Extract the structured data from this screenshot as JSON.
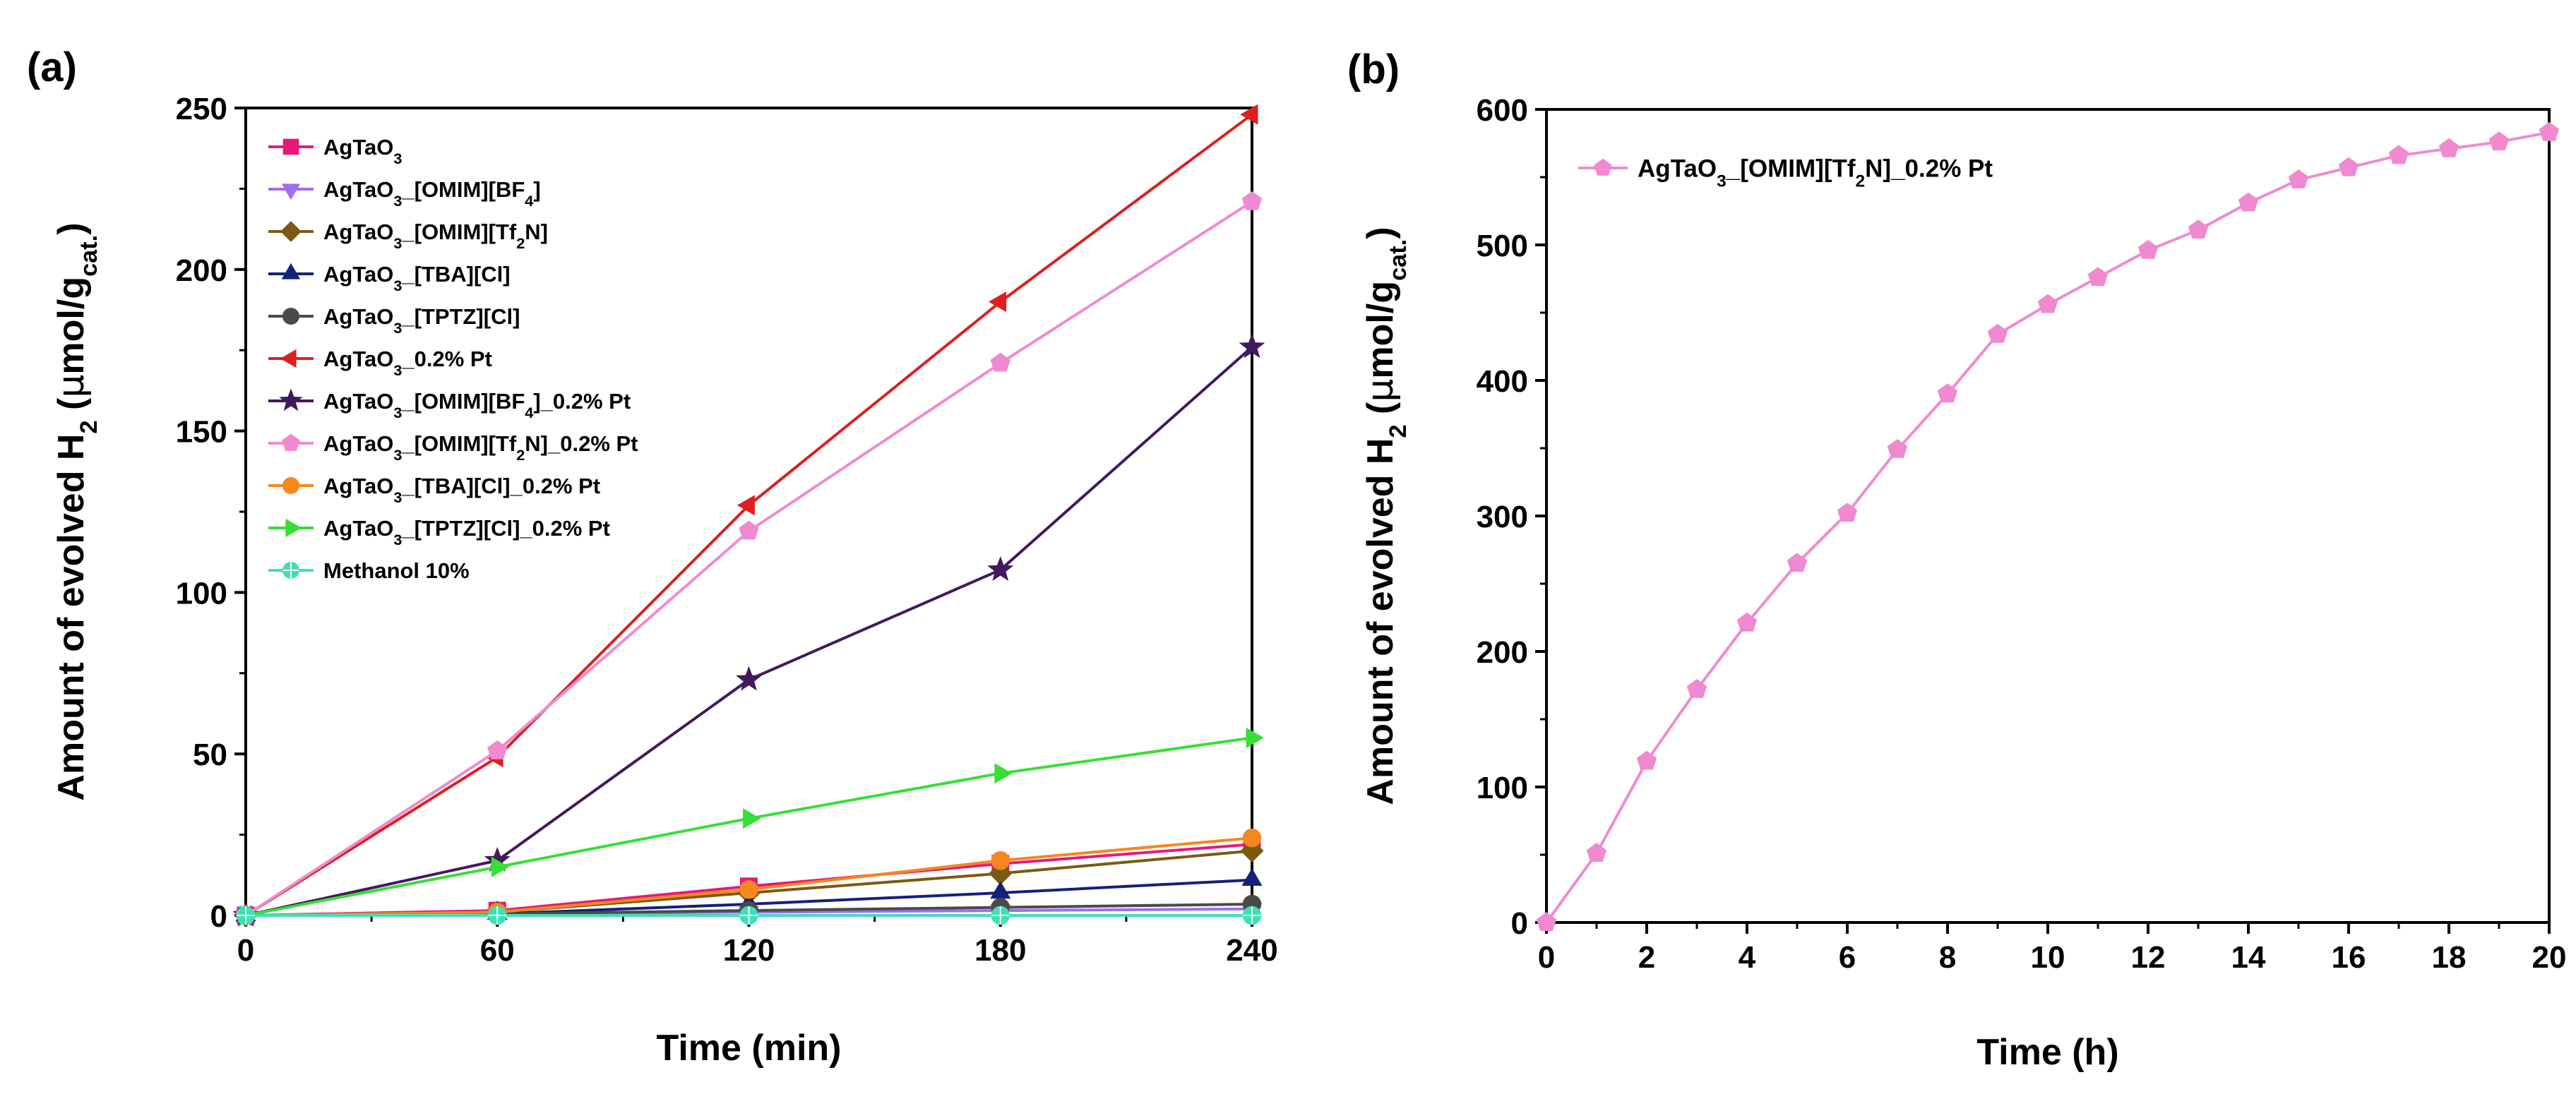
{
  "chart_data": [
    {
      "panel_label": "(a)",
      "type": "line",
      "xlabel": "Time (min)",
      "ylabel": {
        "prefix": "Amount of evolved H",
        "sub": "2",
        "unit_open": " (",
        "mu": "μ",
        "unit": "mol/g",
        "unit_sub": "cat.",
        "close": ")"
      },
      "xlim": [
        0,
        240
      ],
      "ylim": [
        0,
        250
      ],
      "x_ticks": [
        0,
        60,
        120,
        180,
        240
      ],
      "y_ticks": [
        0,
        50,
        100,
        150,
        200,
        250
      ],
      "x": [
        0,
        60,
        120,
        180,
        240
      ],
      "legend_position": "top-left",
      "series": [
        {
          "name": "AgTaO3",
          "parts": [
            [
              "AgTaO",
              ""
            ],
            [
              "3",
              "sub"
            ]
          ],
          "color": "#e6197b",
          "marker": "square",
          "values": [
            0,
            1.5,
            9,
            16,
            22
          ]
        },
        {
          "name": "AgTaO3_[OMIM][BF4]",
          "parts": [
            [
              "AgTaO",
              ""
            ],
            [
              "3",
              "sub"
            ],
            [
              "_[OMIM][BF",
              ""
            ],
            [
              "4",
              "sub"
            ],
            [
              "]",
              ""
            ]
          ],
          "color": "#a26cf0",
          "marker": "triangle-down",
          "values": [
            0,
            0.5,
            1,
            1.5,
            2
          ]
        },
        {
          "name": "AgTaO3_[OMIM][Tf2N]",
          "parts": [
            [
              "AgTaO",
              ""
            ],
            [
              "3",
              "sub"
            ],
            [
              "_[OMIM][Tf",
              ""
            ],
            [
              "2",
              "sub"
            ],
            [
              "N]",
              ""
            ]
          ],
          "color": "#7a5a12",
          "marker": "diamond",
          "values": [
            0,
            1,
            7,
            13,
            20
          ]
        },
        {
          "name": "AgTaO3_[TBA][Cl]",
          "parts": [
            [
              "AgTaO",
              ""
            ],
            [
              "3",
              "sub"
            ],
            [
              "_[TBA][Cl]",
              ""
            ]
          ],
          "color": "#13217a",
          "marker": "triangle-up",
          "values": [
            0,
            0.5,
            3.5,
            7,
            11
          ]
        },
        {
          "name": "AgTaO3_[TPTZ][Cl]",
          "parts": [
            [
              "AgTaO",
              ""
            ],
            [
              "3",
              "sub"
            ],
            [
              "_[TPTZ][Cl]",
              ""
            ]
          ],
          "color": "#4a4a4a",
          "marker": "circle",
          "values": [
            0,
            0.5,
            1.5,
            2.5,
            3.5
          ]
        },
        {
          "name": "AgTaO3_0.2% Pt",
          "parts": [
            [
              "AgTaO",
              ""
            ],
            [
              "3",
              "sub"
            ],
            [
              "_0.2% Pt",
              ""
            ]
          ],
          "color": "#dd1f1f",
          "marker": "triangle-left",
          "values": [
            0,
            49,
            127,
            190,
            248
          ]
        },
        {
          "name": "AgTaO3_[OMIM][BF4]_0.2% Pt",
          "parts": [
            [
              "AgTaO",
              ""
            ],
            [
              "3",
              "sub"
            ],
            [
              "_[OMIM][BF",
              ""
            ],
            [
              "4",
              "sub"
            ],
            [
              "]_0.2% Pt",
              ""
            ]
          ],
          "color": "#43195e",
          "marker": "star",
          "values": [
            0,
            17,
            73,
            107,
            176
          ]
        },
        {
          "name": "AgTaO3_[OMIM][Tf2N]_0.2% Pt",
          "parts": [
            [
              "AgTaO",
              ""
            ],
            [
              "3",
              "sub"
            ],
            [
              "_[OMIM][Tf",
              ""
            ],
            [
              "2",
              "sub"
            ],
            [
              "N]_0.2% Pt",
              ""
            ]
          ],
          "color": "#f08ad0",
          "marker": "pentagon",
          "values": [
            0,
            51,
            119,
            171,
            221
          ]
        },
        {
          "name": "AgTaO3_[TBA][Cl]_0.2% Pt",
          "parts": [
            [
              "AgTaO",
              ""
            ],
            [
              "3",
              "sub"
            ],
            [
              "_[TBA][Cl]_0.2% Pt",
              ""
            ]
          ],
          "color": "#f5871f",
          "marker": "circle",
          "values": [
            0,
            1,
            8,
            17,
            24
          ]
        },
        {
          "name": "AgTaO3_[TPTZ][Cl]_0.2% Pt",
          "parts": [
            [
              "AgTaO",
              ""
            ],
            [
              "3",
              "sub"
            ],
            [
              "_[TPTZ][Cl]_0.2% Pt",
              ""
            ]
          ],
          "color": "#35e035",
          "marker": "triangle-right",
          "values": [
            0,
            15,
            30,
            44,
            55
          ]
        },
        {
          "name": "Methanol 10%",
          "parts": [
            [
              "Methanol 10%",
              ""
            ]
          ],
          "color": "#3ee0b6",
          "marker": "circle-cross",
          "values": [
            0,
            0,
            0,
            0,
            0
          ]
        }
      ]
    },
    {
      "panel_label": "(b)",
      "type": "line",
      "xlabel": "Time (h)",
      "ylabel": {
        "prefix": "Amount of evolved H",
        "sub": "2",
        "unit_open": " (",
        "mu": "μ",
        "unit": "mol/g",
        "unit_sub": "cat.",
        "close": ")"
      },
      "xlim": [
        0,
        20
      ],
      "ylim": [
        0,
        600
      ],
      "x_ticks": [
        0,
        2,
        4,
        6,
        8,
        10,
        12,
        14,
        16,
        18,
        20
      ],
      "y_ticks": [
        0,
        100,
        200,
        300,
        400,
        500,
        600
      ],
      "x": [
        0,
        1,
        2,
        3,
        4,
        5,
        6,
        7,
        8,
        9,
        10,
        11,
        12,
        13,
        14,
        15,
        16,
        17,
        18,
        19,
        20
      ],
      "legend_position": "top-left",
      "series": [
        {
          "name": "AgTaO3_[OMIM][Tf2N]_0.2% Pt",
          "parts": [
            [
              "AgTaO",
              ""
            ],
            [
              "3",
              "sub"
            ],
            [
              "_[OMIM][Tf",
              ""
            ],
            [
              "2",
              "sub"
            ],
            [
              "N]_0.2% Pt",
              ""
            ]
          ],
          "color": "#f08ad0",
          "marker": "pentagon",
          "values": [
            0,
            51,
            119,
            172,
            221,
            265,
            302,
            349,
            390,
            434,
            456,
            476,
            496,
            511,
            531,
            548,
            557,
            566,
            571,
            576,
            583
          ]
        }
      ]
    }
  ]
}
